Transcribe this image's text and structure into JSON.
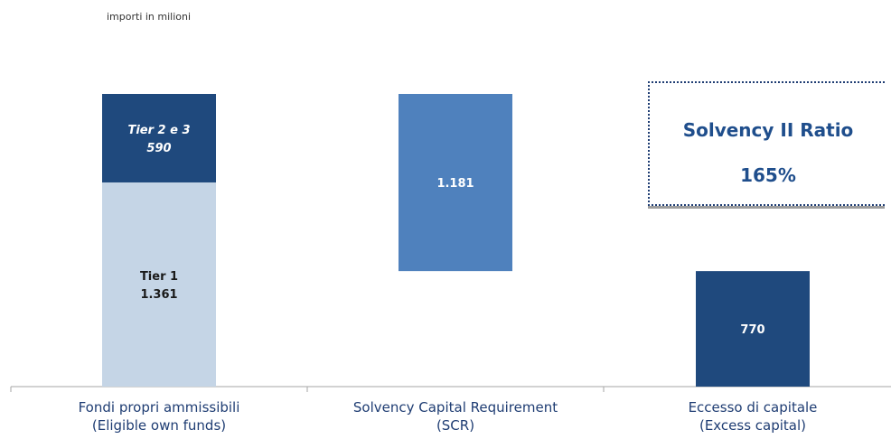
{
  "note": "importi in milioni",
  "colors": {
    "tier1": "#c5d5e6",
    "tier23": "#1f497d",
    "scr": "#4f81bd",
    "excess": "#1f497d"
  },
  "chart_data": {
    "type": "bar",
    "subtype": "waterfall",
    "categories": [
      "Fondi propri ammissibili\n(Eligible own funds)",
      "Solvency Capital Requirement\n(SCR)",
      "Eccesso di capitale\n(Excess capital)"
    ],
    "category_labels": [
      [
        "Fondi propri ammissibili",
        "(Eligible own funds)"
      ],
      [
        "Solvency Capital Requirement",
        "(SCR)"
      ],
      [
        "Eccesso di capitale",
        "(Excess capital)"
      ]
    ],
    "segments": [
      {
        "category": 0,
        "base": 0,
        "value": 1361,
        "label": [
          "Tier 1",
          "1.361"
        ],
        "color": "#c5d5e6",
        "text_color": "#1a1a1a",
        "italic": false
      },
      {
        "category": 0,
        "base": 1361,
        "value": 590,
        "label": [
          "Tier 2 e 3",
          "590"
        ],
        "color": "#1f497d",
        "text_color": "#ffffff",
        "italic": true
      },
      {
        "category": 1,
        "base": 770,
        "value": 1181,
        "label": [
          "1.181"
        ],
        "color": "#4f81bd",
        "text_color": "#ffffff",
        "italic": false
      },
      {
        "category": 2,
        "base": 0,
        "value": 770,
        "label": [
          "770"
        ],
        "color": "#1f497d",
        "text_color": "#ffffff",
        "italic": false
      }
    ],
    "ylim": [
      0,
      1951
    ],
    "grid": false,
    "legend": "none"
  },
  "ratio_box": {
    "title": "Solvency II Ratio",
    "value": "165%"
  }
}
